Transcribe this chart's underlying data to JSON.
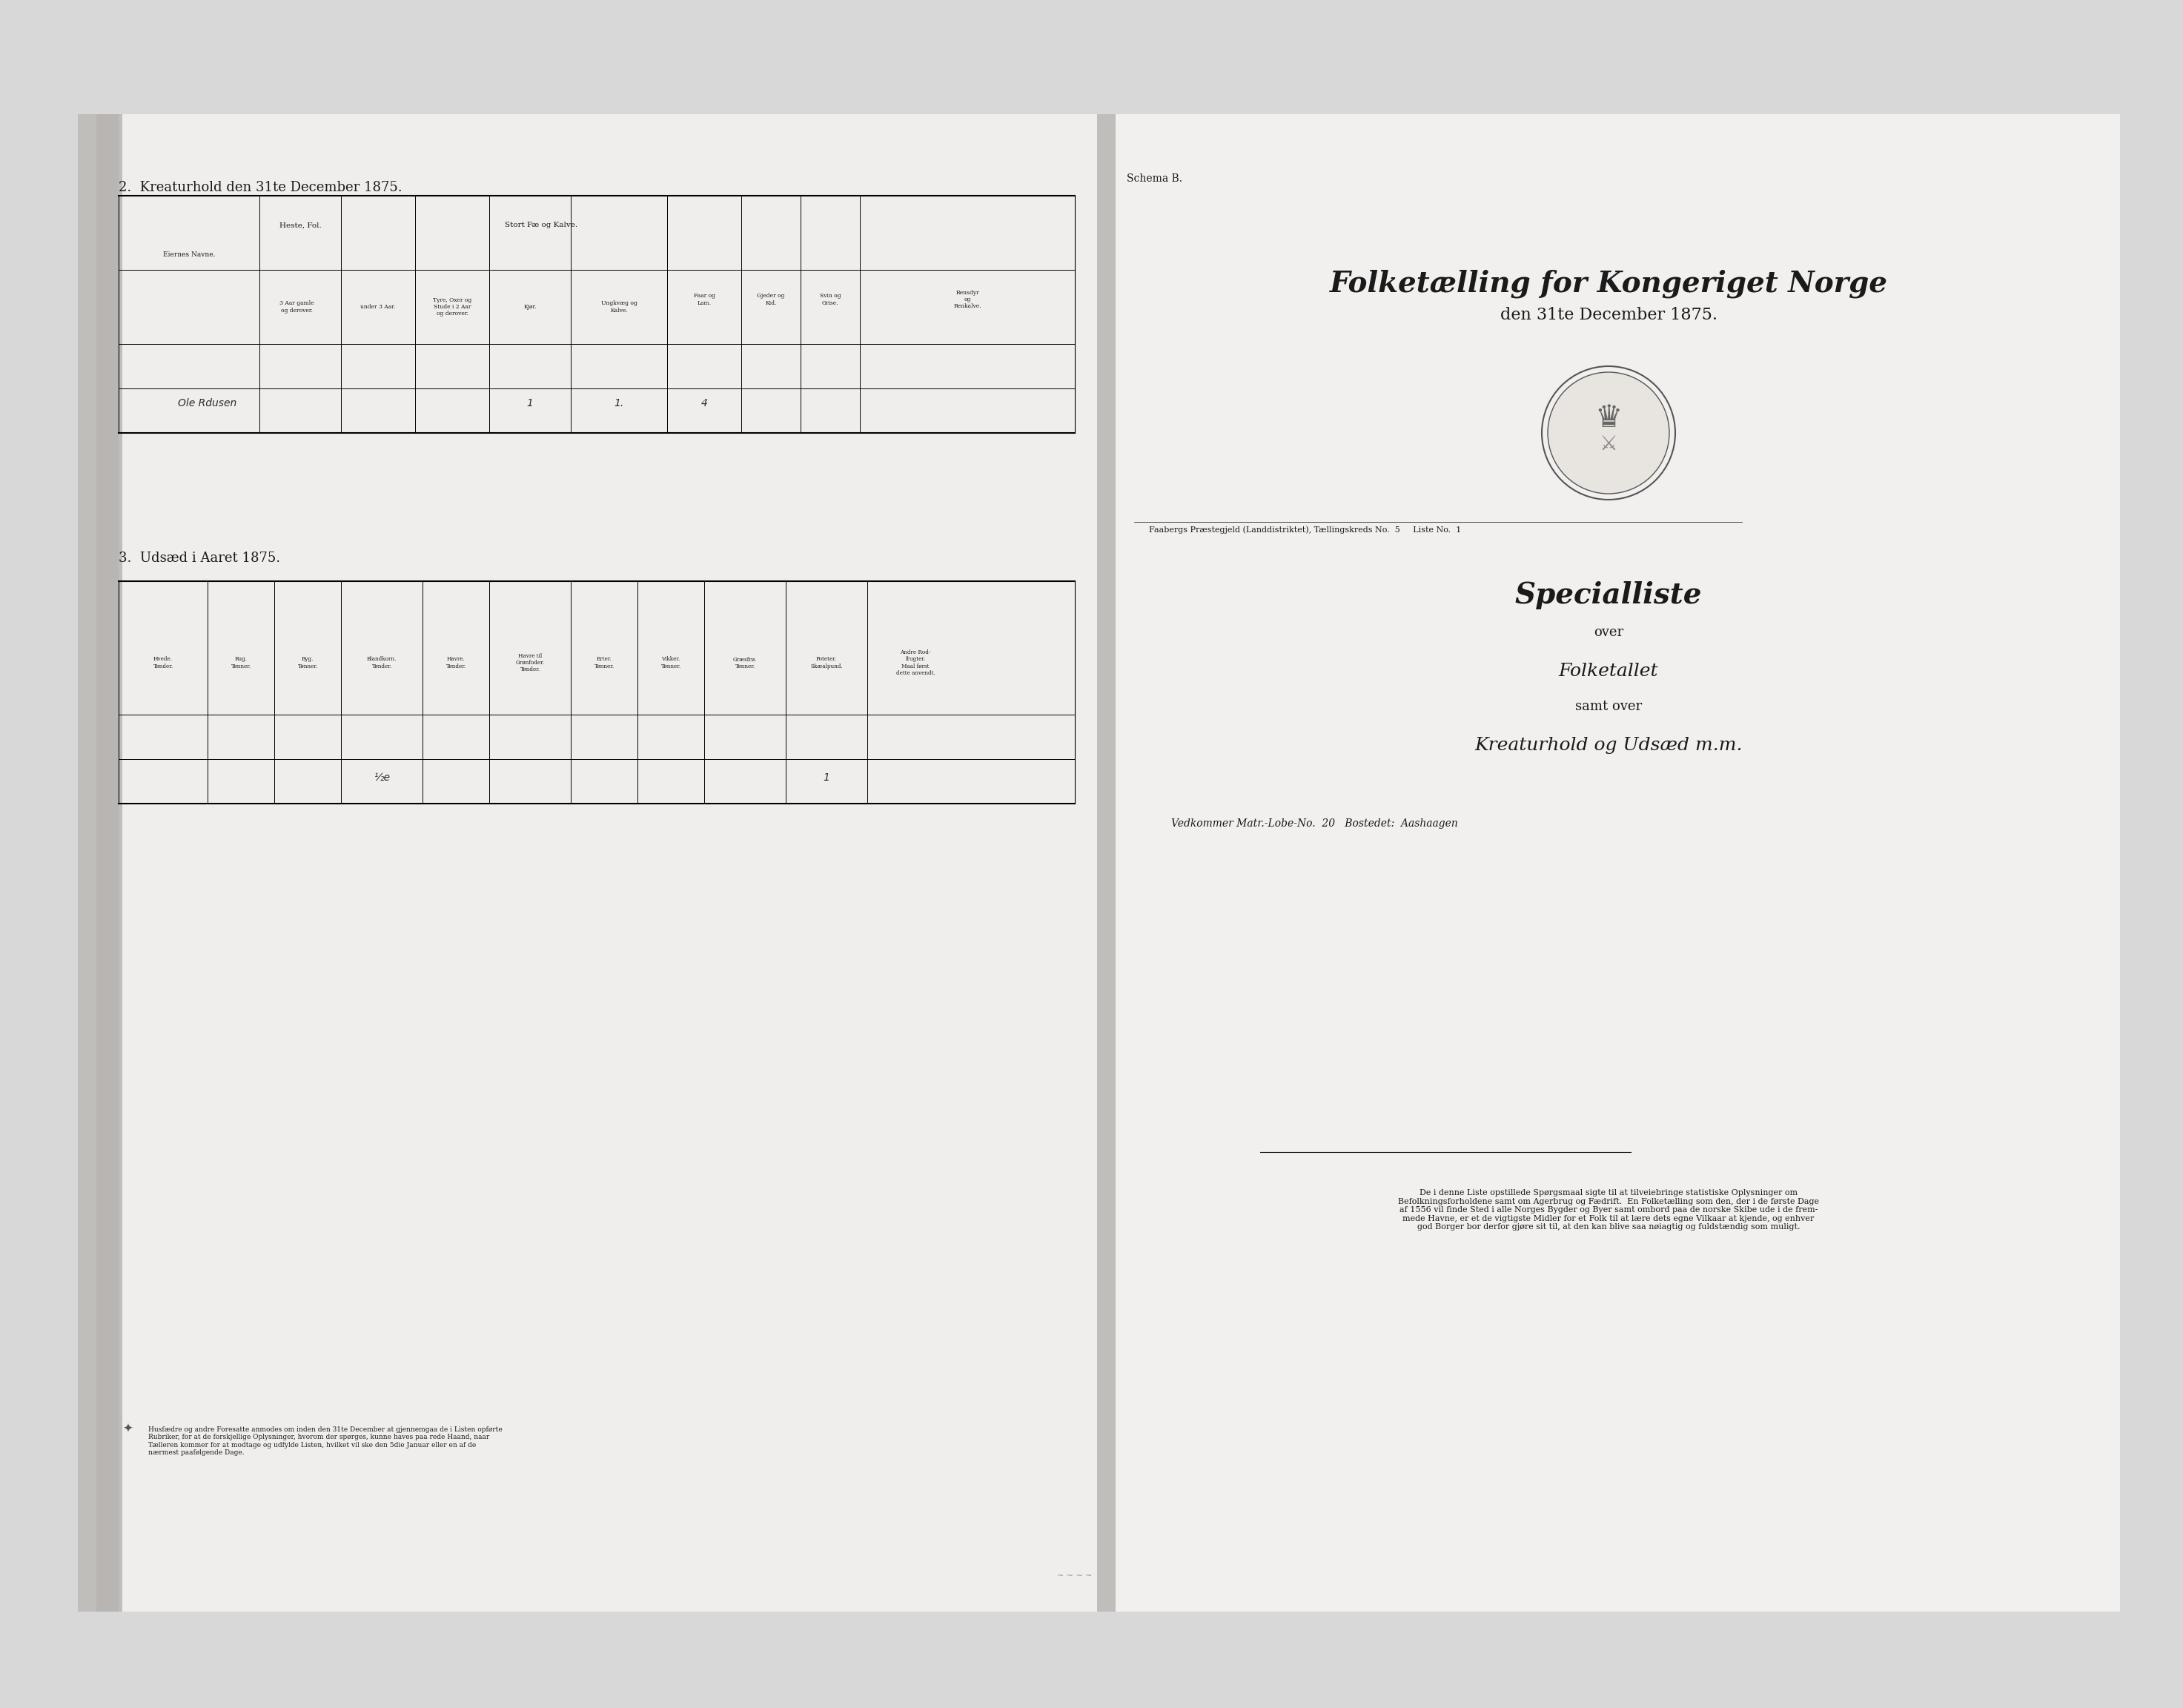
{
  "bg_color": "#d8d8d8",
  "page_bg": "#f0eeec",
  "page_bg2": "#f2f0ee",
  "title_left": "2.  Kreaturhold den 31te December 1875.",
  "title_left2": "3.  Udsæd i Aaret 1875.",
  "schema_b": "Schema B.",
  "main_title_line1": "Folketælling for Kongeriget Norge",
  "main_title_line2": "den 31te December 1875.",
  "subtitle1": "Specialliste",
  "subtitle2": "over",
  "subtitle3": "Folketallet",
  "subtitle4": "samt over",
  "subtitle5": "Kreaturhold og Udsæd m.m.",
  "matr_label": "Vedkommer Matr.-Lobe-No.",
  "matr_value": "20",
  "bosted_label": "Bostedet:",
  "bosted_value": "Aashaagen",
  "faaber_text": "Faabergs Præstegjeld (Landdistriktet), Tællingskreds No.  5     Liste No.  1",
  "eiernes_navne": "Eiernes Navne.",
  "col_heste_fol": "Heste, Fol.",
  "col_stort_fae": "Stort Fæ og Kalve.",
  "col_faar": "Faar og\nLam.",
  "col_gjeder": "Gjeder og\nKid.",
  "col_svin": "Svin og\nGrise.",
  "col_rensdyr": "Rensdyr\nog\nRenkalve.",
  "sub_3aar": "3 Aar gamle\nog derover.",
  "sub_under3": "under 3 Aar.",
  "sub_tyre": "Tyre, Oxer og\nStude i 2 Aar\nog derover.",
  "sub_kjøer": "Kjør.",
  "sub_ungkvæg": "Ungkvæg og\nKalve.",
  "handwriting_name": "Ole Rdusen",
  "handwriting_1a": "1",
  "handwriting_1b": "1.",
  "handwriting_4": "4",
  "col_hvede": "Hvede.\nTønder.",
  "col_rug": "Rug.\nTønner.",
  "col_byg": "Byg.\nTønner.",
  "col_blandkorn": "Blandkorn.\nTønder.",
  "col_havre": "Havre.\nTønder.",
  "col_havre_til": "Havre til\nGrønfoder.\nTønder.",
  "col_erter": "Erter.\nTønner.",
  "col_vikker": "Vikker.\nTønner.",
  "col_græsfrø": "Græsfrø.\nTønner.",
  "col_poteter": "Poteter.\nSkæalpund.",
  "col_andre": "Andre Rod-\nfrugter.\nMaal først\ndette anvendt.",
  "hw_blandkorn": "½e",
  "hw_poteter": "1",
  "footer_text": "Husfædre og andre Foresatte anmodes om inden den 31te December at gjennemgaa de i Listen opførte\nRubriker, for at de forskjellige Oplysninger, hvorom der spørges, kunne haves paa rede Haand, naar\nTælleren kommer for at modtage og udfylde Listen, hvilket vil ske den 5die Januar eller en af de\nnærmest paafølgende Dage.",
  "right_text": "De i denne Liste opstillede Spørgsmaal sigte til at tilveiebringe statistiske Oplysninger om\nBefolkningsforholdene samt om Agerbrug og Fædrift.  En Folketælling som den, der i de første Dage\naf 1556 vil finde Sted i alle Norges Bygder og Byer samt ombord paa de norske Skibe ude i de frem-\nmede Havne, er et de vigtigste Midler for et Folk til at lære dets egne Vilkaar at kjende, og enhver\ngod Borger bor derfor gjøre sit til, at den kan blive saa nøiagtig og fuldstændig som muligt."
}
